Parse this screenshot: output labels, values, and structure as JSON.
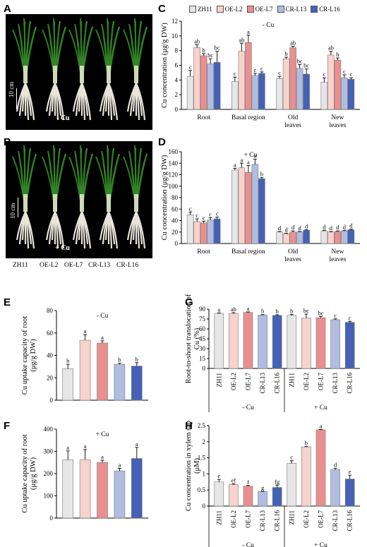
{
  "genotypes": [
    "ZH11",
    "OE-L2",
    "OE-L7",
    "CR-L13",
    "CR-L16"
  ],
  "colors": [
    "#e6e6e6",
    "#f8d2cc",
    "#ea8f8f",
    "#b0bde0",
    "#4461b5"
  ],
  "panel_labels": {
    "A": "A",
    "B": "B",
    "C": "C",
    "D": "D",
    "E": "E",
    "F": "F",
    "G": "G",
    "H": "H"
  },
  "photo": {
    "scale_bar": "10 cm",
    "label_a": "- Cu",
    "label_b": "+ Cu"
  },
  "photo_captions": [
    "ZH11",
    "OE-L2",
    "OE-L7",
    "CR-L13",
    "CR-L16"
  ],
  "chart_data": [
    {
      "id": "C",
      "type": "bar",
      "treatment": "- Cu",
      "ylabel": "Cu concentration (μg/g DW)",
      "ylim": [
        0,
        12
      ],
      "yticks": [
        0,
        2,
        4,
        6,
        8,
        10,
        12
      ],
      "categories": [
        "Root",
        "Basal region",
        "Old leaves",
        "New leaves"
      ],
      "category_lines": [
        [
          "Root"
        ],
        [
          "Basal region"
        ],
        [
          "Old",
          "leaves"
        ],
        [
          "New",
          "leaves"
        ]
      ],
      "series": [
        {
          "name": "ZH11",
          "values": [
            4.5,
            3.8,
            4.2,
            3.7
          ],
          "errors": [
            0.8,
            0.6,
            0.3,
            0.6
          ],
          "letters": [
            "c",
            "c",
            "c",
            "c"
          ]
        },
        {
          "name": "OE-L2",
          "values": [
            8.4,
            7.9,
            6.9,
            7.4
          ],
          "errors": [
            0.4,
            1.1,
            0.2,
            0.5
          ],
          "letters": [
            "ab",
            "ab",
            "b",
            "ab"
          ]
        },
        {
          "name": "OE-L7",
          "values": [
            7.3,
            9.1,
            8.4,
            6.7
          ],
          "errors": [
            0.3,
            1.0,
            0.2,
            0.3
          ],
          "letters": [
            "b",
            "a",
            "ab",
            "b"
          ]
        },
        {
          "name": "CR-L13",
          "values": [
            6.2,
            4.6,
            5.6,
            4.3
          ],
          "errors": [
            0.7,
            0.3,
            0.5,
            0.4
          ],
          "letters": [
            "bc",
            "c",
            "bc",
            "c"
          ]
        },
        {
          "name": "CR-L16",
          "values": [
            6.4,
            4.9,
            4.8,
            4.1
          ],
          "errors": [
            1.5,
            0.2,
            0.7,
            0.2
          ],
          "letters": [
            "bc",
            "c",
            "bc",
            "c"
          ]
        }
      ]
    },
    {
      "id": "D",
      "type": "bar",
      "treatment": "+ Cu",
      "ylabel": "Cu concentration (μg/g DW)",
      "ylim": [
        0,
        160
      ],
      "yticks": [
        0,
        20,
        40,
        60,
        80,
        100,
        120,
        140,
        160
      ],
      "categories": [
        "Root",
        "Basal region",
        "Old leaves",
        "New leaves"
      ],
      "category_lines": [
        [
          "Root"
        ],
        [
          "Basal region"
        ],
        [
          "Old",
          "leaves"
        ],
        [
          "New",
          "leaves"
        ]
      ],
      "series": [
        {
          "name": "ZH11",
          "values": [
            50,
            128,
            20,
            22
          ],
          "errors": [
            5,
            3,
            1,
            1
          ],
          "letters": [
            "c",
            "a",
            "d",
            "d"
          ]
        },
        {
          "name": "OE-L2",
          "values": [
            38,
            132,
            17,
            20
          ],
          "errors": [
            5,
            8,
            1,
            1
          ],
          "letters": [
            "c",
            "a",
            "d",
            "d"
          ]
        },
        {
          "name": "OE-L7",
          "values": [
            36,
            124,
            20,
            21
          ],
          "errors": [
            3,
            12,
            2,
            1
          ],
          "letters": [
            "c",
            "a",
            "d",
            "d"
          ]
        },
        {
          "name": "CR-L13",
          "values": [
            41,
            138,
            20,
            22
          ],
          "errors": [
            4,
            9,
            1,
            1
          ],
          "letters": [
            "c",
            "a",
            "d",
            "d"
          ]
        },
        {
          "name": "CR-L16",
          "values": [
            43,
            113,
            23,
            24
          ],
          "errors": [
            3,
            2,
            1,
            1
          ],
          "letters": [
            "c",
            "b",
            "d",
            "d"
          ]
        }
      ]
    },
    {
      "id": "E",
      "type": "bar",
      "treatment": "- Cu",
      "ylabel_lines": [
        "Cu uptake capacity of root",
        "(μg/g DW)"
      ],
      "ylim": [
        0,
        80
      ],
      "yticks": [
        0,
        20,
        40,
        60,
        80
      ],
      "values": [
        28,
        53.5,
        51,
        32,
        30.5
      ],
      "errors": [
        4,
        5,
        2,
        1,
        3
      ],
      "letters": [
        "b",
        "a",
        "a",
        "b",
        "b"
      ]
    },
    {
      "id": "F",
      "type": "bar",
      "treatment": "+ Cu",
      "ylabel_lines": [
        "Cu uptake capacity of root",
        "(μg/g DW)"
      ],
      "ylim": [
        0,
        400
      ],
      "yticks": [
        0,
        100,
        200,
        300,
        400
      ],
      "values": [
        262,
        263,
        250,
        212,
        268
      ],
      "errors": [
        40,
        45,
        10,
        12,
        50
      ],
      "letters": [
        "a",
        "a",
        "a",
        "a",
        "a"
      ]
    },
    {
      "id": "G",
      "type": "bar",
      "ylabel_lines": [
        "Root-to-shoot translocation of",
        "Cu (%)"
      ],
      "ylim": [
        0,
        90
      ],
      "yticks": [
        0,
        15,
        30,
        45,
        60,
        75,
        90
      ],
      "groups": [
        "- Cu",
        "+ Cu"
      ],
      "categories": [
        "ZH11",
        "OE-L2",
        "OE-L7",
        "CR-L13",
        "CR-L16",
        "ZH11",
        "OE-L2",
        "OE-L7",
        "CR-L13",
        "CR-L16"
      ],
      "values": [
        83.5,
        83.5,
        85,
        81,
        80.5,
        80.5,
        76.5,
        77,
        74,
        70
      ],
      "errors": [
        0.8,
        1.2,
        0.8,
        0.8,
        1.0,
        1.5,
        6,
        2,
        1.2,
        1.5
      ],
      "letters": [
        "a",
        "ab",
        "a",
        "b",
        "b",
        "b",
        "bc",
        "bc",
        "c",
        "c"
      ]
    },
    {
      "id": "H",
      "type": "bar",
      "ylabel_lines": [
        "Cu concentration in xylem sap",
        "(μM)"
      ],
      "ylim": [
        0,
        2.5
      ],
      "yticks": [
        0,
        0.5,
        1,
        1.5,
        2,
        2.5
      ],
      "groups": [
        "- Cu",
        "+ Cu"
      ],
      "categories": [
        "ZH11",
        "OE-L2",
        "OE-L7",
        "CR-L13",
        "CR-L16",
        "ZH11",
        "OE-L2",
        "OE-L7",
        "CR-L13",
        "CR-L16"
      ],
      "values": [
        0.75,
        0.67,
        0.62,
        0.45,
        0.58,
        1.33,
        1.84,
        2.37,
        1.13,
        0.84
      ],
      "errors": [
        0.08,
        0.02,
        0.02,
        0.01,
        0.07,
        0.08,
        0.01,
        0.01,
        0.04,
        0.12
      ],
      "letters": [
        "e",
        "ef",
        "f",
        "g",
        "fg",
        "c",
        "b",
        "a",
        "d",
        "e"
      ]
    }
  ]
}
